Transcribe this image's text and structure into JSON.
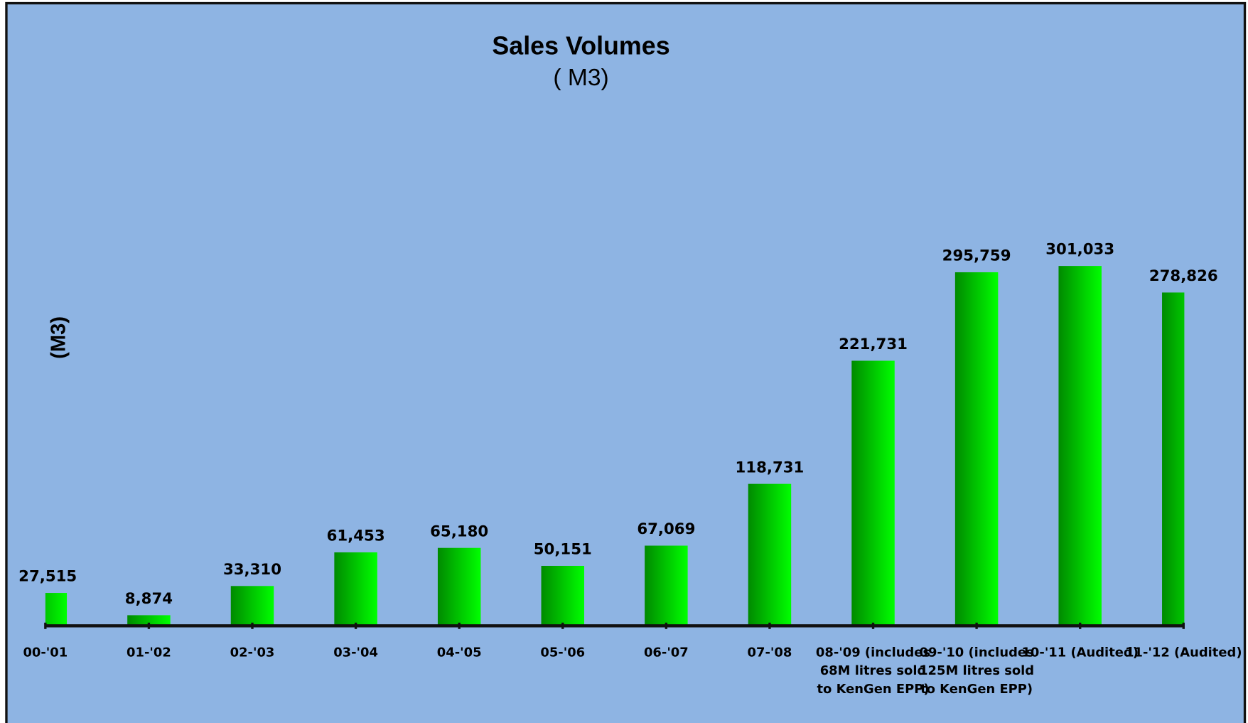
{
  "chart_data": {
    "type": "bar",
    "title": "Sales Volumes",
    "subtitle": "( M3)",
    "y_label": "(M3)",
    "categories": [
      "00-'01",
      "01-'02",
      "02-'03",
      "03-'04",
      "04-'05",
      "05-'06",
      "06-'07",
      "07-'08",
      "08-'09 (includes\n68M litres sold\nto KenGen EPP)",
      "09-'10 (includes\n125M litres sold\nto KenGen EPP)",
      "10-'11 (Audited)",
      "11-'12 (Audited)"
    ],
    "values": [
      27515,
      8874,
      33310,
      61453,
      65180,
      50151,
      67069,
      118731,
      221731,
      295759,
      301033,
      278826
    ],
    "value_labels": [
      "27,515",
      "8,874",
      "33,310",
      "61,453",
      "65,180",
      "50,151",
      "67,069",
      "118,731",
      "221,731",
      "295,759",
      "301,033",
      "278,826"
    ],
    "color": "#00e600",
    "ylim": [
      0,
      400000
    ]
  }
}
